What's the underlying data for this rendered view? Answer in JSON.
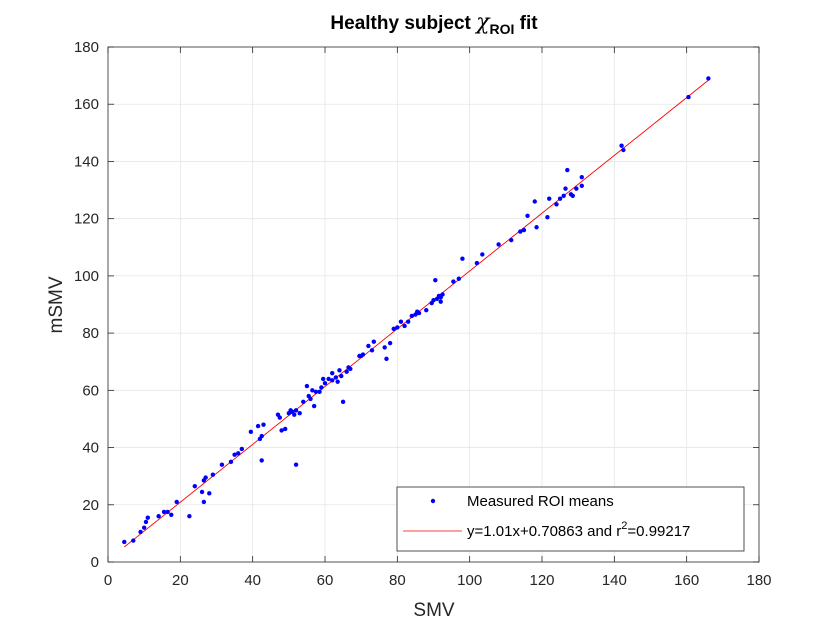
{
  "chart_data": {
    "type": "scatter",
    "title": {
      "prefix": "Healthy subject ",
      "symbol": "χ",
      "subscript": "ROI",
      "suffix": " fit"
    },
    "xlabel": "SMV",
    "ylabel": "mSMV",
    "xlim": [
      0,
      180
    ],
    "ylim": [
      0,
      180
    ],
    "xticks": [
      0,
      20,
      40,
      60,
      80,
      100,
      120,
      140,
      160,
      180
    ],
    "yticks": [
      0,
      20,
      40,
      60,
      80,
      100,
      120,
      140,
      160,
      180
    ],
    "grid": true,
    "legend": {
      "placement": "bottom-right",
      "entries": [
        {
          "label": "Measured ROI means",
          "marker": "dot"
        },
        {
          "label_parts": [
            "y=1.01x+0.70863 and r",
            "2",
            "=0.99217"
          ],
          "marker": "line"
        }
      ]
    },
    "colors": {
      "points": "#0000ff",
      "fit": "#ff0000",
      "axis": "#262626",
      "grid": "#e6e6e6"
    },
    "series": [
      {
        "name": "Measured ROI means",
        "kind": "scatter",
        "points": [
          [
            4.5,
            7
          ],
          [
            7,
            7.5
          ],
          [
            9,
            10.5
          ],
          [
            10,
            12
          ],
          [
            10.5,
            14
          ],
          [
            11,
            15.5
          ],
          [
            14,
            16
          ],
          [
            15.5,
            17.5
          ],
          [
            16.5,
            17.5
          ],
          [
            17.5,
            16.5
          ],
          [
            19,
            21
          ],
          [
            22.5,
            16
          ],
          [
            24,
            26.5
          ],
          [
            26,
            24.5
          ],
          [
            26.5,
            28.5
          ],
          [
            26.5,
            21
          ],
          [
            27,
            29.5
          ],
          [
            28,
            24
          ],
          [
            29,
            30.5
          ],
          [
            31.5,
            34
          ],
          [
            34,
            35
          ],
          [
            35,
            37.5
          ],
          [
            36,
            38
          ],
          [
            37,
            39.5
          ],
          [
            39.5,
            45.5
          ],
          [
            41.5,
            47.5
          ],
          [
            42,
            43
          ],
          [
            42.5,
            44
          ],
          [
            42.5,
            35.5
          ],
          [
            43,
            48
          ],
          [
            47,
            51.5
          ],
          [
            47.5,
            50.5
          ],
          [
            48,
            46
          ],
          [
            49,
            46.5
          ],
          [
            50,
            52
          ],
          [
            50.5,
            53
          ],
          [
            51,
            52.5
          ],
          [
            51.5,
            51.5
          ],
          [
            52,
            34
          ],
          [
            52,
            53
          ],
          [
            53,
            52
          ],
          [
            54,
            56
          ],
          [
            55,
            61.5
          ],
          [
            55.5,
            58
          ],
          [
            56,
            57
          ],
          [
            56.5,
            60
          ],
          [
            57,
            54.5
          ],
          [
            57.5,
            59.5
          ],
          [
            58.5,
            59.5
          ],
          [
            59,
            61
          ],
          [
            59.5,
            64
          ],
          [
            60,
            62.5
          ],
          [
            61,
            64
          ],
          [
            62,
            63.5
          ],
          [
            62,
            66
          ],
          [
            63,
            64.5
          ],
          [
            63.5,
            63
          ],
          [
            64,
            67
          ],
          [
            64.5,
            65
          ],
          [
            65,
            56
          ],
          [
            66,
            66.5
          ],
          [
            66.5,
            68
          ],
          [
            67,
            67.5
          ],
          [
            69.5,
            72
          ],
          [
            70,
            72
          ],
          [
            70.5,
            72.5
          ],
          [
            72,
            75.5
          ],
          [
            73,
            74
          ],
          [
            73.5,
            77
          ],
          [
            76.5,
            75
          ],
          [
            77,
            71
          ],
          [
            78,
            76.5
          ],
          [
            79,
            81.5
          ],
          [
            80,
            82
          ],
          [
            81,
            84
          ],
          [
            82,
            82.5
          ],
          [
            83,
            84
          ],
          [
            84,
            86
          ],
          [
            85,
            86.5
          ],
          [
            85.5,
            87.5
          ],
          [
            86,
            87
          ],
          [
            88,
            88
          ],
          [
            89.5,
            90.5
          ],
          [
            90,
            91.5
          ],
          [
            90.5,
            98.5
          ],
          [
            91,
            92
          ],
          [
            91.5,
            93
          ],
          [
            92,
            92.5
          ],
          [
            92,
            91
          ],
          [
            92.5,
            93.5
          ],
          [
            95.5,
            98
          ],
          [
            97,
            99
          ],
          [
            98,
            106
          ],
          [
            102,
            104.5
          ],
          [
            103.5,
            107.5
          ],
          [
            108,
            111
          ],
          [
            111.5,
            112.5
          ],
          [
            114,
            115.5
          ],
          [
            115,
            116
          ],
          [
            116,
            121
          ],
          [
            118,
            126
          ],
          [
            118.5,
            117
          ],
          [
            121.5,
            120.5
          ],
          [
            122,
            127
          ],
          [
            124,
            125
          ],
          [
            125,
            127
          ],
          [
            126,
            128
          ],
          [
            126.5,
            130.5
          ],
          [
            127,
            137
          ],
          [
            128,
            128.5
          ],
          [
            128.5,
            128
          ],
          [
            129.5,
            130.5
          ],
          [
            131,
            131.5
          ],
          [
            131,
            134.5
          ],
          [
            142,
            145.5
          ],
          [
            142.5,
            144
          ],
          [
            160.5,
            162.5
          ],
          [
            166,
            169
          ]
        ]
      },
      {
        "name": "y=1.01x+0.70863 and r2=0.99217",
        "kind": "line",
        "slope": 1.01,
        "intercept": 0.70863,
        "x_range": [
          4.5,
          166
        ]
      }
    ]
  }
}
